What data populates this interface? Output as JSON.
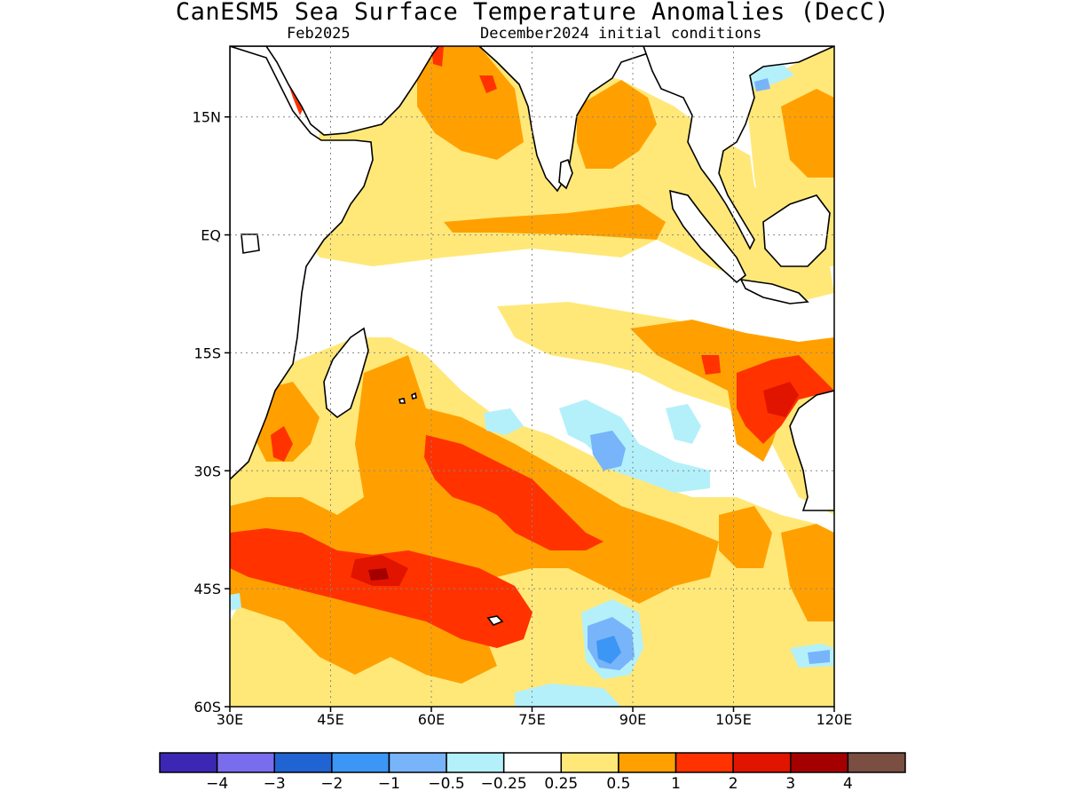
{
  "header": {
    "title": "CanESM5 Sea Surface Temperature Anomalies (DecC)",
    "subtitle_left": "Feb2025",
    "subtitle_right": "December2024 initial conditions"
  },
  "map": {
    "lon_range": [
      30,
      120
    ],
    "lat_range": [
      -60,
      24
    ],
    "x_ticks": [
      {
        "lon": 30,
        "label": "30E"
      },
      {
        "lon": 45,
        "label": "45E"
      },
      {
        "lon": 60,
        "label": "60E"
      },
      {
        "lon": 75,
        "label": "75E"
      },
      {
        "lon": 90,
        "label": "90E"
      },
      {
        "lon": 105,
        "label": "105E"
      },
      {
        "lon": 120,
        "label": "120E"
      }
    ],
    "y_ticks": [
      {
        "lat": 15,
        "label": "15N"
      },
      {
        "lat": 0,
        "label": "EQ"
      },
      {
        "lat": -15,
        "label": "15S"
      },
      {
        "lat": -30,
        "label": "30S"
      },
      {
        "lat": -45,
        "label": "45S"
      },
      {
        "lat": -60,
        "label": "60S"
      }
    ],
    "grid": true,
    "land_color": "#ffffff",
    "coast_color": "#000000"
  },
  "colorbar": {
    "colors": [
      "#3c27b4",
      "#7a6ded",
      "#1f64d2",
      "#3c96f5",
      "#78b4fa",
      "#b4f0fa",
      "#ffffff",
      "#ffe878",
      "#ffa000",
      "#ff3200",
      "#e11400",
      "#a50000",
      "#7a4e40"
    ],
    "labels": [
      "−4",
      "−3",
      "−2",
      "−1",
      "−0.5",
      "−0.25",
      "0.25",
      "0.5",
      "1",
      "2",
      "3",
      "4"
    ]
  }
}
